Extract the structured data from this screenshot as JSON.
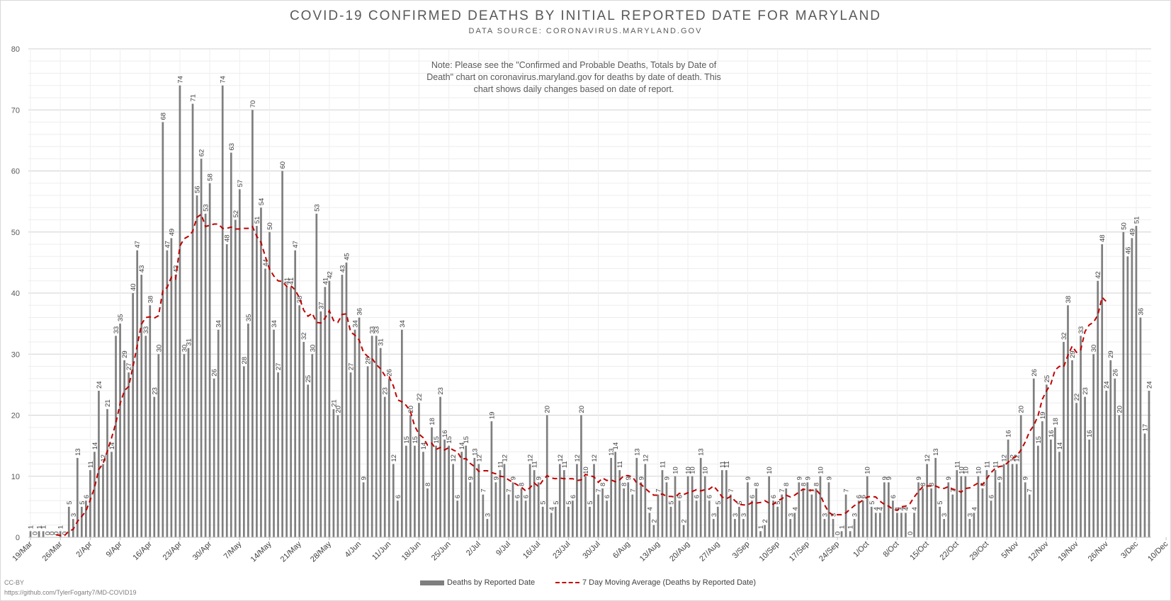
{
  "chart_data": {
    "type": "bar",
    "title": "COVID-19 CONFIRMED DEATHS BY INITIAL REPORTED DATE FOR MARYLAND",
    "subtitle": "DATA SOURCE: CORONAVIRUS.MARYLAND.GOV",
    "note": "Note: Please see the \"Confirmed and Probable Deaths, Totals by Date of Death\" chart on coronavirus.maryland.gov for deaths by date of death. This chart shows daily changes based on date of report.",
    "xlabel": "",
    "ylabel": "",
    "ylim": [
      0,
      80
    ],
    "yticks": [
      "0",
      "10",
      "20",
      "30",
      "40",
      "50",
      "60",
      "70",
      "80"
    ],
    "grid": true,
    "legend_position": "bottom",
    "x_tick_labels": [
      "19/Mar",
      "26/Mar",
      "2/Apr",
      "9/Apr",
      "16/Apr",
      "23/Apr",
      "30/Apr",
      "7/May",
      "14/May",
      "21/May",
      "28/May",
      "4/Jun",
      "11/Jun",
      "18/Jun",
      "25/Jun",
      "2/Jul",
      "9/Jul",
      "16/Jul",
      "23/Jul",
      "30/Jul",
      "6/Aug",
      "13/Aug",
      "20/Aug",
      "27/Aug",
      "3/Sep",
      "10/Sep",
      "17/Sep",
      "24/Sep",
      "1/Oct",
      "8/Oct",
      "15/Oct",
      "22/Oct",
      "29/Oct",
      "5/Nov",
      "12/Nov",
      "19/Nov",
      "26/Nov",
      "3/Dec",
      "10/Dec"
    ],
    "series": [
      {
        "name": "Deaths by Reported Date",
        "kind": "bar",
        "color": "#7f7f7f",
        "values": [
          1,
          0,
          1,
          1,
          0,
          0,
          0,
          1,
          0,
          5,
          3,
          13,
          5,
          6,
          11,
          14,
          24,
          12,
          21,
          14,
          33,
          35,
          29,
          27,
          40,
          47,
          43,
          33,
          38,
          23,
          30,
          68,
          47,
          49,
          43,
          74,
          30,
          31,
          71,
          56,
          62,
          53,
          58,
          26,
          34,
          74,
          48,
          63,
          52,
          57,
          28,
          35,
          70,
          51,
          54,
          44,
          50,
          34,
          27,
          60,
          41,
          41,
          47,
          38,
          32,
          25,
          30,
          53,
          37,
          41,
          42,
          21,
          20,
          43,
          45,
          27,
          34,
          36,
          9,
          28,
          33,
          33,
          31,
          23,
          26,
          12,
          6,
          34,
          15,
          20,
          15,
          22,
          14,
          8,
          18,
          15,
          23,
          16,
          15,
          12,
          6,
          14,
          15,
          9,
          13,
          12,
          7,
          3,
          19,
          9,
          11,
          12,
          7,
          9,
          6,
          8,
          6,
          12,
          11,
          9,
          5,
          20,
          4,
          5,
          12,
          11,
          5,
          6,
          12,
          20,
          10,
          5,
          12,
          7,
          8,
          6,
          13,
          14,
          11,
          8,
          9,
          7,
          13,
          9,
          12,
          4,
          2,
          7,
          11,
          9,
          5,
          10,
          6,
          2,
          10,
          10,
          6,
          13,
          10,
          6,
          3,
          5,
          11,
          11,
          7,
          3,
          5,
          3,
          9,
          6,
          8,
          1,
          2,
          10,
          6,
          5,
          7,
          8,
          3,
          4,
          9,
          8,
          9,
          7,
          8,
          10,
          3,
          9,
          3,
          0,
          1,
          7,
          1,
          3,
          6,
          6,
          10,
          5,
          4,
          4,
          9,
          9,
          6,
          4,
          4,
          4,
          0,
          4,
          9,
          8,
          12,
          8,
          13,
          5,
          3,
          9,
          7,
          11,
          10,
          10,
          3,
          4,
          10,
          8,
          11,
          6,
          11,
          9,
          12,
          16,
          12,
          12,
          20,
          9,
          7,
          26,
          15,
          19,
          25,
          16,
          18,
          14,
          32,
          38,
          29,
          22,
          33,
          23,
          16,
          30,
          42,
          48,
          24,
          29,
          26,
          20,
          50,
          46,
          49,
          51,
          36,
          17,
          24
        ]
      },
      {
        "name": "7 Day Moving Average (Deaths by Reported Date)",
        "kind": "line",
        "color": "#c00000",
        "values": [
          null,
          null,
          null,
          null,
          null,
          null,
          0.4,
          0.3,
          0.3,
          1.0,
          1.3,
          2.6,
          3.4,
          4.3,
          6.1,
          8.1,
          11.1,
          12.1,
          14.1,
          16.3,
          18.7,
          21.9,
          24.0,
          24.7,
          27.9,
          31.4,
          34.9,
          36.0,
          36.1,
          35.9,
          36.3,
          40.4,
          40.9,
          42.6,
          42.3,
          47.7,
          48.9,
          49.3,
          50.1,
          52.4,
          52.9,
          50.9,
          51.1,
          51.3,
          51.3,
          50.6,
          50.6,
          50.8,
          50.5,
          50.5,
          50.6,
          50.6,
          50.9,
          49.3,
          48.3,
          46.0,
          43.9,
          42.8,
          42.0,
          41.9,
          41.1,
          41.2,
          40.5,
          39.2,
          37.2,
          36.2,
          36.7,
          35.2,
          35.1,
          35.9,
          37.1,
          35.5,
          35.2,
          36.5,
          36.6,
          33.6,
          33.1,
          32.3,
          30.3,
          29.6,
          29.3,
          28.3,
          27.6,
          26.5,
          26.3,
          24.8,
          22.5,
          22.2,
          21.6,
          20.6,
          18.2,
          16.9,
          16.3,
          15.1,
          15.4,
          14.4,
          14.7,
          14.3,
          14.7,
          14.3,
          14.0,
          12.8,
          12.9,
          12.1,
          11.6,
          10.8,
          10.9,
          10.9,
          10.6,
          10.4,
          10.0,
          9.9,
          9.4,
          9.0,
          8.6,
          8.2,
          7.6,
          8.1,
          8.9,
          8.3,
          9.3,
          10.1,
          9.7,
          9.6,
          9.7,
          9.6,
          9.6,
          9.6,
          9.3,
          9.4,
          10.3,
          10.1,
          9.9,
          9.0,
          9.7,
          9.3,
          9.4,
          9.1,
          9.4,
          10.1,
          10.1,
          9.9,
          8.9,
          8.7,
          8.0,
          7.4,
          6.9,
          6.9,
          7.1,
          6.7,
          6.7,
          6.6,
          7.2,
          7.0,
          7.3,
          7.5,
          7.8,
          7.6,
          7.8,
          7.9,
          8.4,
          7.6,
          6.6,
          6.3,
          6.7,
          6.0,
          5.4,
          5.3,
          5.3,
          5.7,
          5.6,
          5.7,
          6.0,
          5.6,
          5.4,
          6.0,
          6.3,
          6.9,
          6.6,
          6.9,
          7.4,
          7.9,
          7.7,
          7.7,
          7.8,
          7.0,
          5.3,
          4.1,
          3.6,
          3.7,
          3.7,
          4.0,
          4.6,
          5.2,
          5.6,
          6.1,
          6.6,
          6.7,
          6.6,
          5.9,
          5.4,
          5.1,
          4.6,
          4.4,
          5.0,
          5.1,
          5.5,
          6.6,
          7.5,
          8.3,
          8.4,
          8.4,
          8.4,
          8.1,
          8.0,
          8.3,
          7.9,
          7.7,
          7.4,
          8.0,
          8.1,
          8.5,
          8.9,
          8.6,
          9.6,
          10.6,
          11.3,
          11.6,
          11.7,
          12.3,
          12.9,
          13.3,
          14.3,
          15.6,
          17.3,
          18.3,
          19.9,
          22.6,
          24.0,
          25.1,
          27.4,
          28.0,
          27.9,
          29.8,
          31.3,
          30.3,
          30.7,
          33.7,
          34.8,
          35.2,
          36.4,
          39.3,
          38.6
        ]
      }
    ]
  },
  "legend": {
    "bar_label": "Deaths by Reported Date",
    "line_label": "7 Day Moving Average (Deaths by Reported Date)"
  },
  "footer": {
    "license": "CC-BY",
    "source_url": "https://github.com/TylerFogarty7/MD-COVID19"
  }
}
